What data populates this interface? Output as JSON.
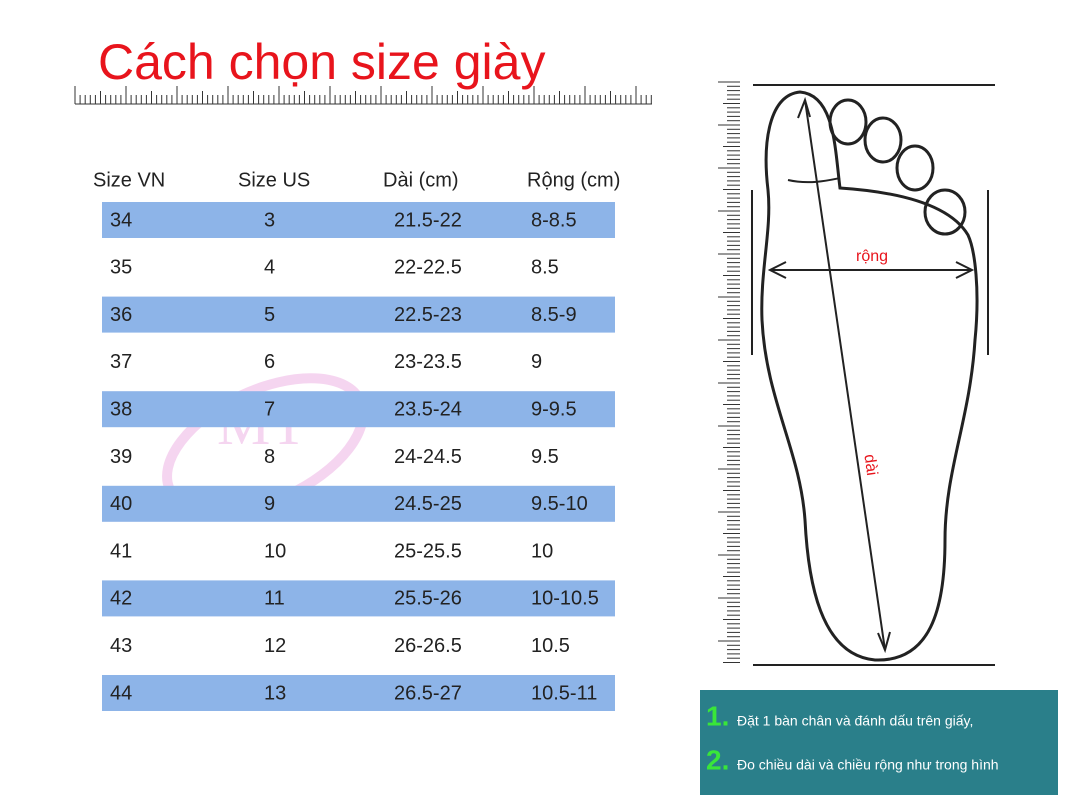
{
  "header": {
    "title": "Cách chọn size giày"
  },
  "watermark": "MT",
  "table": {
    "columns": [
      "Size VN",
      "Size US",
      "Dài (cm)",
      "Rộng (cm)"
    ],
    "rows": [
      [
        "34",
        "3",
        "21.5-22",
        "8-8.5"
      ],
      [
        "35",
        "4",
        "22-22.5",
        "8.5"
      ],
      [
        "36",
        "5",
        "22.5-23",
        "8.5-9"
      ],
      [
        "37",
        "6",
        "23-23.5",
        "9"
      ],
      [
        "38",
        "7",
        "23.5-24",
        "9-9.5"
      ],
      [
        "39",
        "8",
        "24-24.5",
        "9.5"
      ],
      [
        "40",
        "9",
        "24.5-25",
        "9.5-10"
      ],
      [
        "41",
        "10",
        "25-25.5",
        "10"
      ],
      [
        "42",
        "11",
        "25.5-26",
        "10-10.5"
      ],
      [
        "43",
        "12",
        "26-26.5",
        "10.5"
      ],
      [
        "44",
        "13",
        "26.5-27",
        "10.5-11"
      ]
    ]
  },
  "diagram": {
    "width_label": "rộng",
    "length_label": "dài"
  },
  "instructions": [
    {
      "number": "1.",
      "text": "Đặt 1 bàn chân và đánh dấu trên giấy,"
    },
    {
      "number": "2.",
      "text": "Đo chiều dài và chiều rộng như trong hình"
    }
  ]
}
